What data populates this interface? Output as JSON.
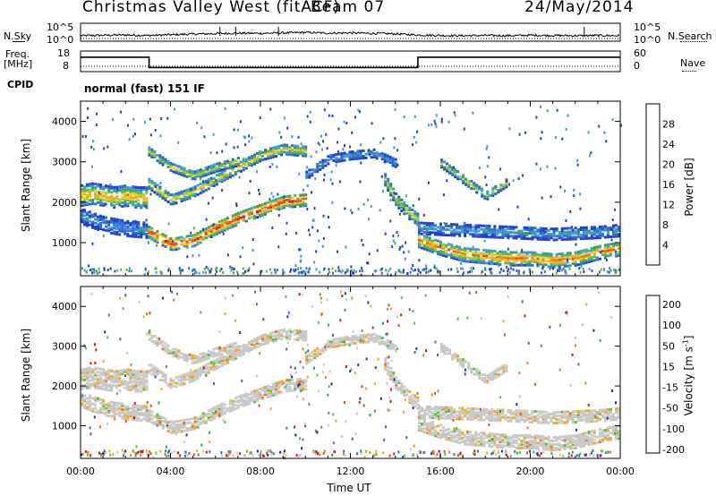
{
  "header": {
    "title": "Christmas Valley West (fitACF)",
    "beam": "Beam 07",
    "date": "24/May/2014"
  },
  "top_panels": {
    "nsky_label": "N.Sky",
    "nsearch_label": "N.Search",
    "nsky_ticks": [
      "10^5",
      "10^0"
    ],
    "nsearch_ticks": [
      "10^5",
      "10^0"
    ],
    "freq_label_1": "Freq.",
    "freq_label_2": "[MHz]",
    "freq_ticks": [
      "18",
      "8"
    ],
    "nave_label": "Nave",
    "nave_ticks": [
      "60",
      "0"
    ],
    "cpid_label": "CPID",
    "cpid_text": "normal (fast) 151 IF"
  },
  "colors": {
    "power": [
      "#1f3fd1",
      "#2f6ad8",
      "#3a9bd6",
      "#3d9b6b",
      "#5ab84a",
      "#9fce3c",
      "#f0d021",
      "#f5a623",
      "#f07818",
      "#e84a14",
      "#e01010"
    ],
    "velocity": [
      "#2030b0",
      "#2d6fb8",
      "#3c9c5a",
      "#54c43a",
      "#c8c8c8",
      "#c8c8c8",
      "#f0a81e",
      "#f07818",
      "#ec4a14",
      "#e01010"
    ]
  },
  "chart_data": [
    {
      "type": "line",
      "name": "nsky_nsearch",
      "x_unit": "hours UT",
      "series": [
        {
          "name": "N.Sky",
          "x": [
            0,
            1,
            2,
            3,
            4,
            5,
            6,
            7,
            8,
            9,
            10,
            11,
            12,
            13,
            14,
            15,
            16,
            17,
            18,
            19,
            20,
            21,
            22,
            23,
            24
          ],
          "y": [
            1.2,
            1.4,
            1.5,
            1.3,
            1.6,
            1.9,
            2.1,
            2.3,
            2.2,
            2.4,
            2.6,
            2.3,
            2.4,
            2.2,
            2.0,
            1.5,
            1.3,
            1.2,
            1.3,
            1.2,
            1.4,
            1.3,
            1.2,
            1.3,
            1.2
          ]
        }
      ],
      "spikes_hours": [
        6.2,
        6.9,
        8.8,
        22.4
      ]
    },
    {
      "type": "line",
      "name": "freq_nave",
      "series": [
        {
          "name": "Freq.",
          "x": [
            0,
            3.05,
            3.05,
            15.0,
            15.0,
            24
          ],
          "y": [
            15,
            15,
            10,
            10,
            15,
            15
          ]
        },
        {
          "name": "Nave",
          "x": [
            0,
            24
          ],
          "y": [
            16,
            16
          ]
        }
      ],
      "ylim": [
        8,
        18
      ]
    },
    {
      "type": "heatmap",
      "name": "power",
      "title": "",
      "xlabel": "",
      "ylabel": "Slant Range [km]",
      "colorbar_label": "Power [dB]",
      "colorbar_ticks": [
        "28",
        "24",
        "20",
        "16",
        "12",
        "8",
        "4"
      ],
      "x_range": [
        0,
        24
      ],
      "ylim": [
        180,
        4500
      ],
      "y_ticks": [
        "1000",
        "2000",
        "3000",
        "4000"
      ],
      "features": [
        {
          "kind": "band",
          "x": [
            0.0,
            0.5,
            1.0,
            1.5,
            2.0,
            2.5,
            3.0
          ],
          "y": [
            2200,
            2250,
            2200,
            2150,
            2200,
            2150,
            2150
          ],
          "width": 500,
          "peak_db": 22
        },
        {
          "kind": "band",
          "x": [
            3.0,
            3.5,
            4.0,
            5.0,
            6.0,
            7.0,
            8.0,
            9.0,
            10.0
          ],
          "y": [
            1300,
            1150,
            1000,
            1100,
            1400,
            1650,
            1850,
            2050,
            2100
          ],
          "width": 300,
          "peak_db": 28
        },
        {
          "kind": "band",
          "x": [
            3.0,
            4.0,
            5.0,
            6.0,
            7.0,
            8.0,
            9.0,
            10.0
          ],
          "y": [
            2500,
            2100,
            2300,
            2600,
            2900,
            3200,
            3350,
            3300
          ],
          "width": 250,
          "peak_db": 20
        },
        {
          "kind": "band",
          "x": [
            3.0,
            4.0,
            5.0,
            6.0,
            7.0
          ],
          "y": [
            3300,
            2900,
            2700,
            2900,
            3050
          ],
          "width": 200,
          "peak_db": 18
        },
        {
          "kind": "band",
          "x": [
            13.5,
            14.0,
            14.5,
            15.0
          ],
          "y": [
            2600,
            2100,
            1800,
            1600
          ],
          "width": 300,
          "peak_db": 18
        },
        {
          "kind": "band",
          "x": [
            15.0,
            16.0,
            17.0,
            18.0,
            19.0,
            20.0,
            21.0,
            22.0,
            23.0,
            24.0
          ],
          "y": [
            1100,
            900,
            750,
            700,
            650,
            650,
            600,
            650,
            800,
            900
          ],
          "width": 350,
          "peak_db": 24
        },
        {
          "kind": "band",
          "x": [
            16.0,
            17.0,
            18.0,
            19.0
          ],
          "y": [
            3000,
            2600,
            2200,
            2550
          ],
          "width": 200,
          "peak_db": 18
        },
        {
          "kind": "band",
          "x": [
            15.0,
            17.0,
            19.0,
            21.0,
            23.0,
            24.0
          ],
          "y": [
            1400,
            1350,
            1300,
            1250,
            1300,
            1350
          ],
          "width": 300,
          "peak_db": 10
        },
        {
          "kind": "band",
          "x": [
            10.0,
            11.0,
            12.0,
            13.0,
            14.0
          ],
          "y": [
            2700,
            3100,
            3200,
            3250,
            3000
          ],
          "width": 200,
          "peak_db": 10
        },
        {
          "kind": "band",
          "x": [
            0.0,
            1.0,
            2.0,
            3.0
          ],
          "y": [
            1700,
            1500,
            1400,
            1350
          ],
          "width": 400,
          "peak_db": 9
        }
      ]
    },
    {
      "type": "heatmap",
      "name": "velocity",
      "title": "",
      "xlabel": "Time UT",
      "ylabel": "Slant Range [km]",
      "colorbar_label": "Velocity [m s^-1]",
      "colorbar_ticks": [
        "200",
        "100",
        "50",
        "15",
        "-15",
        "-50",
        "-100",
        "-200"
      ],
      "x_range": [
        0,
        24
      ],
      "x_ticks": [
        "00:00",
        "04:00",
        "08:00",
        "12:00",
        "16:00",
        "20:00",
        "00:00"
      ],
      "ylim": [
        180,
        4500
      ],
      "y_ticks": [
        "1000",
        "2000",
        "3000",
        "4000"
      ]
    }
  ]
}
